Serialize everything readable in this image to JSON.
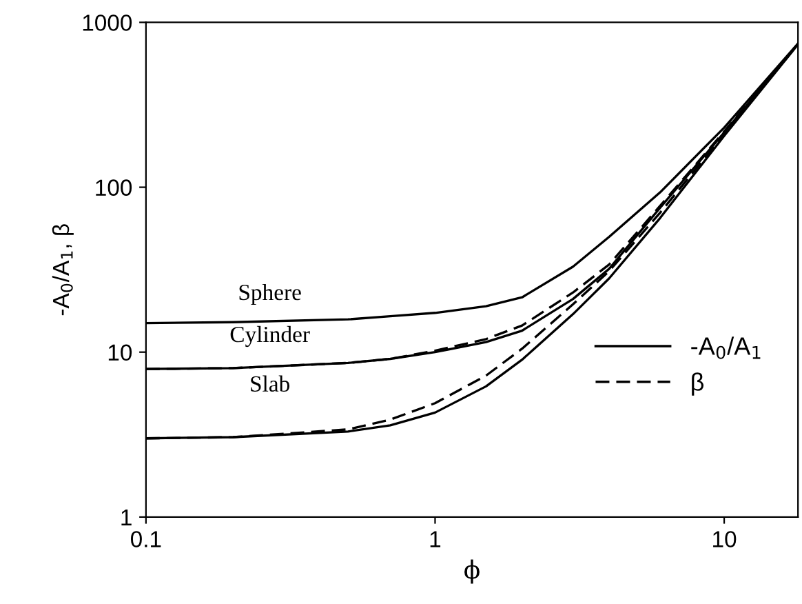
{
  "chart_data": {
    "type": "line",
    "xlabel": "ϕ",
    "ylabel": "-A$_{0}$/A$_{1}$, β",
    "log": "xy",
    "x": [
      0.1,
      0.2,
      0.5,
      0.7,
      1,
      1.5,
      2,
      3,
      4,
      6,
      10,
      18
    ],
    "series": [
      {
        "name": "-A$_{0}$/A$_{1}$",
        "color": "#000000",
        "line_style": "solid",
        "values": [
          15,
          15.2,
          15.8,
          16.5,
          17.3,
          19,
          21.5,
          33,
          50,
          93,
          230,
          745
        ]
      },
      {
        "color": "#000000",
        "line_style": "solid",
        "values": [
          7.9,
          8.0,
          8.6,
          9.1,
          10,
          11.5,
          13.5,
          21,
          32,
          75,
          215,
          740
        ]
      },
      {
        "color": "#000000",
        "line_style": "solid",
        "values": [
          3.0,
          3.05,
          3.3,
          3.6,
          4.3,
          6.2,
          9,
          17,
          28,
          65,
          205,
          735
        ]
      },
      {
        "name": "β",
        "color": "#000000",
        "line_style": "dashed",
        "values": [
          7.9,
          8.0,
          8.6,
          9.1,
          10.2,
          12,
          14.5,
          23,
          34,
          77,
          218,
          740
        ]
      },
      {
        "color": "#000000",
        "line_style": "dashed",
        "values": [
          3.0,
          3.05,
          3.4,
          3.9,
          4.9,
          7.2,
          10.5,
          19.5,
          31,
          70,
          210,
          735
        ]
      }
    ],
    "annotations": [
      "Sphere",
      "Cylinder",
      "Slab"
    ],
    "xlim": [
      0.1,
      18
    ],
    "ylim": [
      1,
      1000
    ],
    "xticks": [
      0.1,
      1,
      10
    ],
    "yticks": [
      1,
      10,
      100,
      1000
    ],
    "grid": false,
    "legend": "bottom right",
    "marker": "none"
  }
}
